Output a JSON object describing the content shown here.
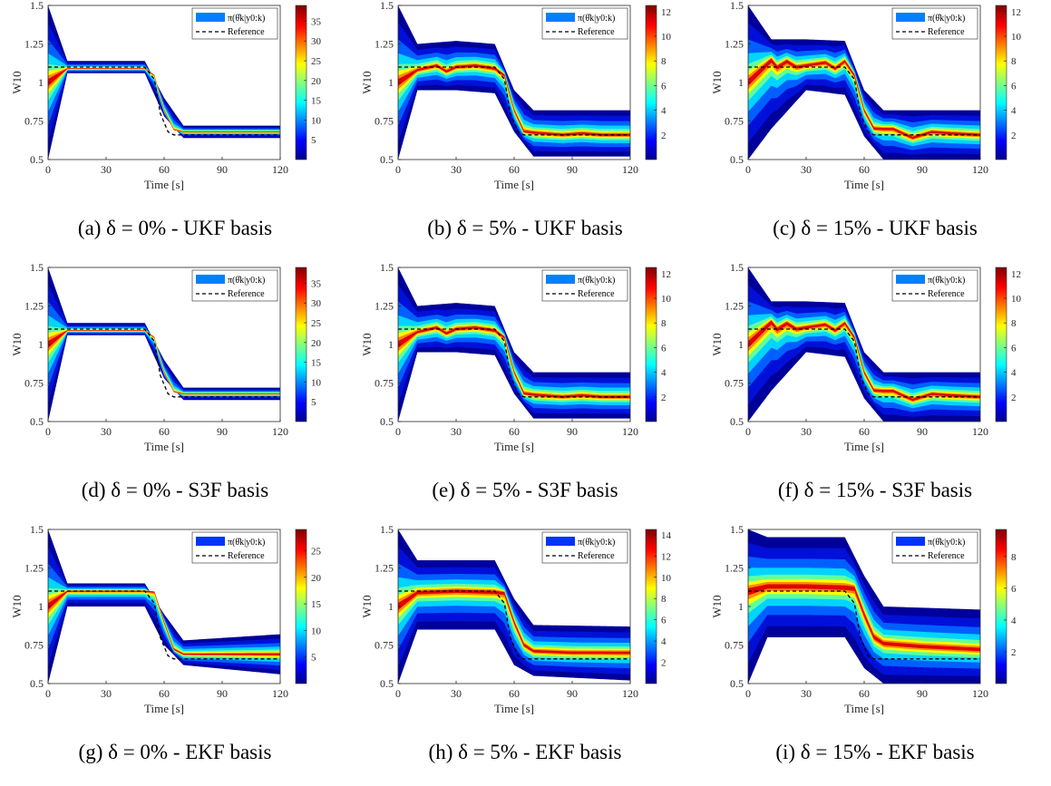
{
  "figure": {
    "common": {
      "ylabel": "W10",
      "xlabel": "Time [s]",
      "xticks": [
        "0",
        "30",
        "60",
        "90",
        "120"
      ],
      "yticks": [
        "0.5",
        "0.75",
        "1",
        "1.25",
        "1.5"
      ],
      "legend": [
        "π(θ̂k|y0:k)",
        "Reference"
      ],
      "xlim": [
        0,
        120
      ],
      "ylim": [
        0.5,
        1.5
      ]
    },
    "panels": [
      {
        "caption": "(a) δ = 0% - UKF basis",
        "delta": 0,
        "basis": "UKF",
        "cb_max": 39,
        "cb_ticks": [
          "5",
          "10",
          "15",
          "20",
          "25",
          "30",
          "35"
        ]
      },
      {
        "caption": "(b) δ = 5% - UKF basis",
        "delta": 5,
        "basis": "UKF",
        "cb_max": 12.5,
        "cb_ticks": [
          "2",
          "4",
          "6",
          "8",
          "10",
          "12"
        ]
      },
      {
        "caption": "(c) δ = 15% - UKF basis",
        "delta": 15,
        "basis": "UKF",
        "cb_max": 12.5,
        "cb_ticks": [
          "2",
          "4",
          "6",
          "8",
          "10",
          "12"
        ]
      },
      {
        "caption": "(d) δ = 0% - S3F basis",
        "delta": 0,
        "basis": "S3F",
        "cb_max": 39,
        "cb_ticks": [
          "5",
          "10",
          "15",
          "20",
          "25",
          "30",
          "35"
        ]
      },
      {
        "caption": "(e) δ = 5% - S3F basis",
        "delta": 5,
        "basis": "S3F",
        "cb_max": 12.5,
        "cb_ticks": [
          "2",
          "4",
          "6",
          "8",
          "10",
          "12"
        ]
      },
      {
        "caption": "(f) δ = 15% - S3F basis",
        "delta": 15,
        "basis": "S3F",
        "cb_max": 12.5,
        "cb_ticks": [
          "2",
          "4",
          "6",
          "8",
          "10",
          "12"
        ]
      },
      {
        "caption": "(g) δ = 0% - EKF basis",
        "delta": 0,
        "basis": "EKF",
        "cb_max": 29,
        "cb_ticks": [
          "5",
          "10",
          "15",
          "20",
          "25"
        ]
      },
      {
        "caption": "(h) δ = 5% - EKF basis",
        "delta": 5,
        "basis": "EKF",
        "cb_max": 14.5,
        "cb_ticks": [
          "2",
          "4",
          "6",
          "8",
          "10",
          "12",
          "14"
        ]
      },
      {
        "caption": "(i) δ = 15% - EKF basis",
        "delta": 15,
        "basis": "EKF",
        "cb_max": 9.7,
        "cb_ticks": [
          "2",
          "4",
          "6",
          "8"
        ]
      }
    ]
  },
  "chart_data": [
    {
      "type": "heatmap",
      "panel": "a",
      "xlabel": "Time [s]",
      "ylabel": "W10",
      "xlim": [
        0,
        120
      ],
      "ylim": [
        0.5,
        1.5
      ],
      "reference": {
        "x": [
          0,
          50,
          55,
          58,
          62,
          65,
          120
        ],
        "y": [
          1.1,
          1.1,
          1.02,
          0.8,
          0.68,
          0.66,
          0.66
        ]
      },
      "estimate": {
        "x": [
          0,
          10,
          30,
          50,
          55,
          60,
          65,
          70,
          90,
          120
        ],
        "y": [
          1.0,
          1.09,
          1.09,
          1.09,
          1.05,
          0.82,
          0.69,
          0.68,
          0.68,
          0.68
        ]
      },
      "band": {
        "x": [
          0,
          10,
          50,
          60,
          70,
          120
        ],
        "upper": [
          1.5,
          1.14,
          1.14,
          0.9,
          0.72,
          0.72
        ],
        "lower": [
          0.5,
          1.06,
          1.06,
          0.78,
          0.64,
          0.64
        ]
      },
      "colorbar": {
        "min": 0,
        "max": 39
      }
    },
    {
      "type": "heatmap",
      "panel": "b",
      "xlabel": "Time [s]",
      "ylabel": "W10",
      "xlim": [
        0,
        120
      ],
      "ylim": [
        0.5,
        1.5
      ],
      "reference": {
        "x": [
          0,
          50,
          55,
          58,
          62,
          65,
          120
        ],
        "y": [
          1.1,
          1.1,
          1.02,
          0.8,
          0.68,
          0.66,
          0.66
        ]
      },
      "estimate": {
        "x": [
          0,
          10,
          20,
          25,
          30,
          40,
          50,
          55,
          60,
          65,
          75,
          85,
          95,
          105,
          120
        ],
        "y": [
          1.0,
          1.08,
          1.11,
          1.07,
          1.1,
          1.11,
          1.09,
          1.05,
          0.82,
          0.68,
          0.67,
          0.66,
          0.67,
          0.66,
          0.66
        ]
      },
      "band": {
        "x": [
          0,
          10,
          30,
          50,
          60,
          70,
          120
        ],
        "upper": [
          1.5,
          1.25,
          1.27,
          1.25,
          0.95,
          0.82,
          0.82
        ],
        "lower": [
          0.5,
          0.95,
          0.95,
          0.93,
          0.68,
          0.52,
          0.52
        ]
      },
      "colorbar": {
        "min": 0,
        "max": 12.5
      }
    },
    {
      "type": "heatmap",
      "panel": "c",
      "xlabel": "Time [s]",
      "ylabel": "W10",
      "xlim": [
        0,
        120
      ],
      "ylim": [
        0.5,
        1.5
      ],
      "reference": {
        "x": [
          0,
          50,
          55,
          58,
          62,
          65,
          120
        ],
        "y": [
          1.1,
          1.1,
          1.02,
          0.8,
          0.68,
          0.66,
          0.66
        ]
      },
      "estimate": {
        "x": [
          0,
          12,
          15,
          20,
          25,
          30,
          40,
          45,
          50,
          55,
          60,
          65,
          75,
          85,
          95,
          105,
          120
        ],
        "y": [
          1.0,
          1.15,
          1.1,
          1.14,
          1.1,
          1.11,
          1.13,
          1.09,
          1.14,
          1.05,
          0.82,
          0.7,
          0.7,
          0.64,
          0.68,
          0.67,
          0.66
        ]
      },
      "band": {
        "x": [
          0,
          12,
          30,
          50,
          60,
          70,
          120
        ],
        "upper": [
          1.5,
          1.28,
          1.28,
          1.27,
          0.95,
          0.82,
          0.82
        ],
        "lower": [
          0.5,
          0.7,
          0.95,
          0.92,
          0.65,
          0.5,
          0.5
        ]
      },
      "colorbar": {
        "min": 0,
        "max": 12.5
      }
    },
    {
      "type": "heatmap",
      "panel": "d",
      "xlabel": "Time [s]",
      "ylabel": "W10",
      "xlim": [
        0,
        120
      ],
      "ylim": [
        0.5,
        1.5
      ],
      "reference": {
        "x": [
          0,
          50,
          55,
          58,
          62,
          65,
          120
        ],
        "y": [
          1.1,
          1.1,
          1.02,
          0.8,
          0.68,
          0.66,
          0.66
        ]
      },
      "estimate": {
        "x": [
          0,
          10,
          30,
          50,
          55,
          60,
          65,
          70,
          90,
          120
        ],
        "y": [
          1.0,
          1.09,
          1.09,
          1.09,
          1.05,
          0.82,
          0.69,
          0.68,
          0.68,
          0.68
        ]
      },
      "band": {
        "x": [
          0,
          10,
          50,
          60,
          70,
          120
        ],
        "upper": [
          1.5,
          1.14,
          1.14,
          0.9,
          0.72,
          0.72
        ],
        "lower": [
          0.5,
          1.06,
          1.06,
          0.78,
          0.64,
          0.64
        ]
      },
      "colorbar": {
        "min": 0,
        "max": 39
      }
    },
    {
      "type": "heatmap",
      "panel": "e",
      "xlabel": "Time [s]",
      "ylabel": "W10",
      "xlim": [
        0,
        120
      ],
      "ylim": [
        0.5,
        1.5
      ],
      "reference": {
        "x": [
          0,
          50,
          55,
          58,
          62,
          65,
          120
        ],
        "y": [
          1.1,
          1.1,
          1.02,
          0.8,
          0.68,
          0.66,
          0.66
        ]
      },
      "estimate": {
        "x": [
          0,
          10,
          20,
          25,
          30,
          40,
          50,
          55,
          60,
          65,
          75,
          85,
          95,
          105,
          120
        ],
        "y": [
          1.0,
          1.08,
          1.11,
          1.07,
          1.1,
          1.11,
          1.09,
          1.05,
          0.82,
          0.68,
          0.67,
          0.66,
          0.67,
          0.66,
          0.66
        ]
      },
      "band": {
        "x": [
          0,
          10,
          30,
          50,
          60,
          70,
          120
        ],
        "upper": [
          1.5,
          1.25,
          1.27,
          1.25,
          0.95,
          0.82,
          0.82
        ],
        "lower": [
          0.5,
          0.95,
          0.95,
          0.93,
          0.68,
          0.52,
          0.52
        ]
      },
      "colorbar": {
        "min": 0,
        "max": 12.5
      }
    },
    {
      "type": "heatmap",
      "panel": "f",
      "xlabel": "Time [s]",
      "ylabel": "W10",
      "xlim": [
        0,
        120
      ],
      "ylim": [
        0.5,
        1.5
      ],
      "reference": {
        "x": [
          0,
          50,
          55,
          58,
          62,
          65,
          120
        ],
        "y": [
          1.1,
          1.1,
          1.02,
          0.8,
          0.68,
          0.66,
          0.66
        ]
      },
      "estimate": {
        "x": [
          0,
          12,
          15,
          20,
          25,
          30,
          40,
          45,
          50,
          55,
          60,
          65,
          75,
          85,
          95,
          105,
          120
        ],
        "y": [
          1.0,
          1.15,
          1.1,
          1.14,
          1.1,
          1.11,
          1.13,
          1.09,
          1.14,
          1.05,
          0.82,
          0.7,
          0.7,
          0.64,
          0.68,
          0.67,
          0.66
        ]
      },
      "band": {
        "x": [
          0,
          12,
          30,
          50,
          60,
          70,
          120
        ],
        "upper": [
          1.5,
          1.28,
          1.28,
          1.27,
          0.95,
          0.82,
          0.82
        ],
        "lower": [
          0.5,
          0.7,
          0.95,
          0.92,
          0.65,
          0.5,
          0.5
        ]
      },
      "colorbar": {
        "min": 0,
        "max": 12.5
      }
    },
    {
      "type": "heatmap",
      "panel": "g",
      "xlabel": "Time [s]",
      "ylabel": "W10",
      "xlim": [
        0,
        120
      ],
      "ylim": [
        0.5,
        1.5
      ],
      "reference": {
        "x": [
          0,
          50,
          55,
          58,
          62,
          65,
          120
        ],
        "y": [
          1.1,
          1.1,
          1.02,
          0.8,
          0.68,
          0.66,
          0.66
        ]
      },
      "estimate": {
        "x": [
          0,
          10,
          30,
          55,
          60,
          65,
          70,
          90,
          120
        ],
        "y": [
          1.0,
          1.1,
          1.1,
          1.1,
          0.9,
          0.72,
          0.69,
          0.69,
          0.69
        ]
      },
      "band": {
        "x": [
          0,
          10,
          50,
          60,
          70,
          120
        ],
        "upper": [
          1.5,
          1.15,
          1.15,
          0.95,
          0.78,
          0.82
        ],
        "lower": [
          0.5,
          1.0,
          1.0,
          0.75,
          0.62,
          0.56
        ]
      },
      "colorbar": {
        "min": 0,
        "max": 29
      }
    },
    {
      "type": "heatmap",
      "panel": "h",
      "xlabel": "Time [s]",
      "ylabel": "W10",
      "xlim": [
        0,
        120
      ],
      "ylim": [
        0.5,
        1.5
      ],
      "reference": {
        "x": [
          0,
          50,
          55,
          58,
          62,
          65,
          120
        ],
        "y": [
          1.1,
          1.1,
          1.02,
          0.8,
          0.68,
          0.66,
          0.66
        ]
      },
      "estimate": {
        "x": [
          0,
          10,
          30,
          55,
          60,
          65,
          70,
          90,
          120
        ],
        "y": [
          1.0,
          1.09,
          1.1,
          1.09,
          0.9,
          0.75,
          0.71,
          0.7,
          0.7
        ]
      },
      "band": {
        "x": [
          0,
          10,
          50,
          60,
          70,
          120
        ],
        "upper": [
          1.5,
          1.3,
          1.3,
          1.05,
          0.88,
          0.87
        ],
        "lower": [
          0.5,
          0.85,
          0.85,
          0.62,
          0.55,
          0.52
        ]
      },
      "colorbar": {
        "min": 0,
        "max": 14.5
      }
    },
    {
      "type": "heatmap",
      "panel": "i",
      "xlabel": "Time [s]",
      "ylabel": "W10",
      "xlim": [
        0,
        120
      ],
      "ylim": [
        0.5,
        1.5
      ],
      "reference": {
        "x": [
          0,
          50,
          55,
          58,
          62,
          65,
          120
        ],
        "y": [
          1.1,
          1.1,
          1.02,
          0.8,
          0.68,
          0.66,
          0.66
        ]
      },
      "estimate": {
        "x": [
          0,
          10,
          30,
          55,
          60,
          65,
          70,
          90,
          120
        ],
        "y": [
          1.1,
          1.13,
          1.13,
          1.12,
          0.95,
          0.8,
          0.76,
          0.74,
          0.72
        ]
      },
      "band": {
        "x": [
          0,
          10,
          50,
          60,
          70,
          120
        ],
        "upper": [
          1.5,
          1.45,
          1.45,
          1.2,
          1.0,
          0.98
        ],
        "lower": [
          0.5,
          0.8,
          0.8,
          0.6,
          0.5,
          0.5
        ]
      },
      "colorbar": {
        "min": 0,
        "max": 9.7
      }
    }
  ]
}
